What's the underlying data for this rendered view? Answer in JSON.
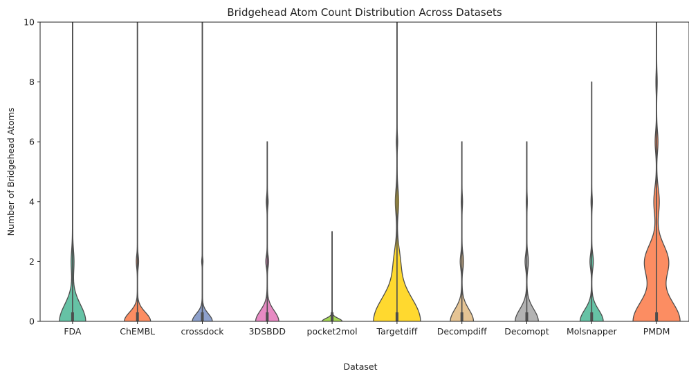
{
  "chart_data": {
    "type": "violin",
    "title": "Bridgehead Atom Count Distribution Across Datasets",
    "xlabel": "Dataset",
    "ylabel": "Number of Bridgehead Atoms",
    "ylim": [
      0,
      10
    ],
    "yticks": [
      0,
      2,
      4,
      6,
      8,
      10
    ],
    "grid": false,
    "legend": "none",
    "categories": [
      "FDA",
      "ChEMBL",
      "crossdock",
      "3DSBDD",
      "pocket2mol",
      "Targetdiff",
      "Decompdiff",
      "Decomopt",
      "Molsnapper",
      "PMDM"
    ],
    "series": [
      {
        "category": "FDA",
        "color": "#66c2a5",
        "max": 10,
        "peaks": [
          {
            "at": 0,
            "width": 0.5,
            "spread": 0.55
          },
          {
            "at": 2,
            "width": 0.05,
            "spread": 0.38
          }
        ]
      },
      {
        "category": "ChEMBL",
        "color": "#fc8d62",
        "max": 10,
        "peaks": [
          {
            "at": 0,
            "width": 0.5,
            "spread": 0.3
          },
          {
            "at": 2,
            "width": 0.04,
            "spread": 0.2
          }
        ]
      },
      {
        "category": "crossdock",
        "color": "#8da0cb",
        "max": 10,
        "peaks": [
          {
            "at": 0,
            "width": 0.38,
            "spread": 0.25
          },
          {
            "at": 2,
            "width": 0.02,
            "spread": 0.1
          }
        ]
      },
      {
        "category": "3DSBDD",
        "color": "#e78ac3",
        "max": 6,
        "peaks": [
          {
            "at": 0,
            "width": 0.44,
            "spread": 0.35
          },
          {
            "at": 2,
            "width": 0.05,
            "spread": 0.18
          },
          {
            "at": 4,
            "width": 0.03,
            "spread": 0.18
          }
        ]
      },
      {
        "category": "pocket2mol",
        "color": "#a6d854",
        "max": 3,
        "peaks": [
          {
            "at": 0,
            "width": 0.38,
            "spread": 0.1
          }
        ]
      },
      {
        "category": "Targetdiff",
        "color": "#ffd92f",
        "max": 10,
        "peaks": [
          {
            "at": 0,
            "width": 0.9,
            "spread": 0.8
          },
          {
            "at": 2,
            "width": 0.1,
            "spread": 0.5
          },
          {
            "at": 4,
            "width": 0.06,
            "spread": 0.4
          },
          {
            "at": 6,
            "width": 0.02,
            "spread": 0.2
          }
        ]
      },
      {
        "category": "Decompdiff",
        "color": "#e5c494",
        "max": 6,
        "peaks": [
          {
            "at": 0,
            "width": 0.44,
            "spread": 0.4
          },
          {
            "at": 2,
            "width": 0.06,
            "spread": 0.25
          },
          {
            "at": 4,
            "width": 0.02,
            "spread": 0.2
          }
        ]
      },
      {
        "category": "Decomopt",
        "color": "#b3b3b3",
        "max": 6,
        "peaks": [
          {
            "at": 0,
            "width": 0.44,
            "spread": 0.4
          },
          {
            "at": 2,
            "width": 0.06,
            "spread": 0.25
          },
          {
            "at": 4,
            "width": 0.015,
            "spread": 0.2
          }
        ]
      },
      {
        "category": "Molsnapper",
        "color": "#66c2a5",
        "max": 8,
        "peaks": [
          {
            "at": 0,
            "width": 0.44,
            "spread": 0.38
          },
          {
            "at": 2,
            "width": 0.06,
            "spread": 0.25
          },
          {
            "at": 4,
            "width": 0.02,
            "spread": 0.2
          }
        ]
      },
      {
        "category": "PMDM",
        "color": "#fc8d62",
        "max": 10,
        "peaks": [
          {
            "at": 0,
            "width": 0.9,
            "spread": 0.7
          },
          {
            "at": 2,
            "width": 0.45,
            "spread": 0.55
          },
          {
            "at": 4,
            "width": 0.1,
            "spread": 0.45
          },
          {
            "at": 6,
            "width": 0.05,
            "spread": 0.35
          },
          {
            "at": 8,
            "width": 0.02,
            "spread": 0.3
          }
        ]
      }
    ]
  }
}
